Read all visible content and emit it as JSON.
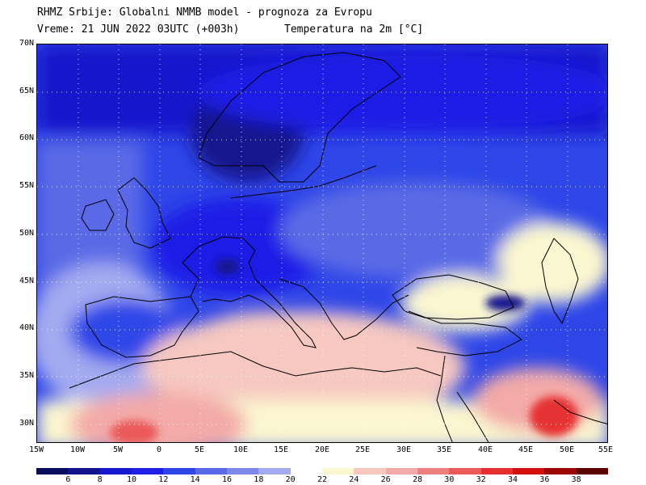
{
  "header": {
    "line1": "RHMZ Srbije: Globalni NMMB model - prognoza za Evropu",
    "line2_left": "Vreme: 21 JUN 2022 03UTC (+003h)",
    "line2_right": "Temperatura na 2m [°C]"
  },
  "axes": {
    "lat_labels": [
      "70N",
      "65N",
      "60N",
      "55N",
      "50N",
      "45N",
      "40N",
      "35N",
      "30N"
    ],
    "lon_labels": [
      "15W",
      "10W",
      "5W",
      "0",
      "5E",
      "10E",
      "15E",
      "20E",
      "25E",
      "30E",
      "35E",
      "40E",
      "45E",
      "50E",
      "55E"
    ]
  },
  "colorbar": {
    "labels": [
      "6",
      "8",
      "10",
      "12",
      "14",
      "16",
      "18",
      "20",
      "22",
      "24",
      "26",
      "28",
      "30",
      "32",
      "34",
      "36",
      "38"
    ],
    "colors": [
      "#0b0b5e",
      "#13138e",
      "#1818cc",
      "#1e1ee6",
      "#2e46e8",
      "#5a6ae6",
      "#7c88ea",
      "#a3aaf0",
      "#ffffff",
      "#fbf7d0",
      "#f6c8c0",
      "#f3aaa8",
      "#ee8080",
      "#ea5a5a",
      "#e63030",
      "#d40f0f",
      "#9c0707",
      "#5a0202"
    ]
  }
}
